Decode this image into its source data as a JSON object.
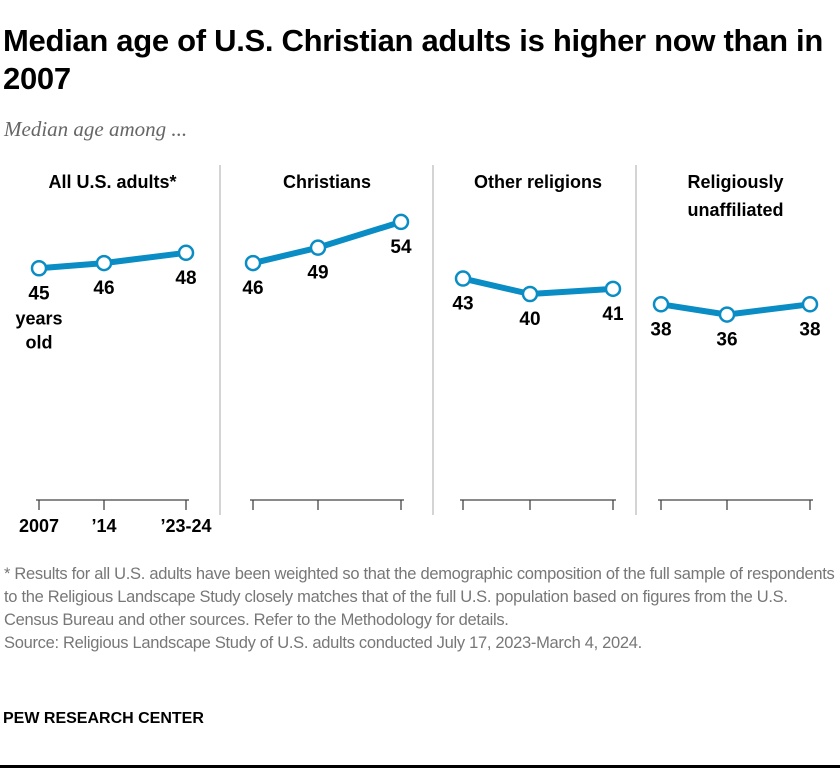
{
  "title": "Median age of U.S. Christian adults is higher now than in 2007",
  "subtitle": "Median age among ...",
  "chart_data": {
    "type": "line",
    "x": [
      "2007",
      "’14",
      "’23-24"
    ],
    "unit_label": "years old",
    "line_color": "#0a8cc4",
    "panels": [
      {
        "title": "All U.S. adults*",
        "values": [
          45,
          46,
          48
        ]
      },
      {
        "title": "Christians",
        "values": [
          46,
          49,
          54
        ]
      },
      {
        "title": "Other religions",
        "values": [
          43,
          40,
          41
        ]
      },
      {
        "title": "Religiously unaffiliated",
        "title_lines": [
          "Religiously",
          "unaffiliated"
        ],
        "values": [
          38,
          36,
          38
        ]
      }
    ]
  },
  "notes": {
    "footnote": "* Results for all U.S. adults have been weighted so that the demographic composition of the full sample of respondents to the Religious Landscape Study closely matches that of the full U.S. population based on figures from the U.S. Census Bureau and other sources. Refer to the Methodology for details.",
    "source": "Source: Religious Landscape Study of U.S. adults conducted July 17, 2023-March 4, 2024."
  },
  "brand": "PEW RESEARCH CENTER"
}
